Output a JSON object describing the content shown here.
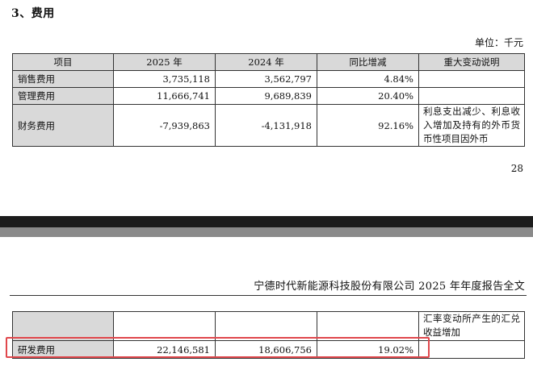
{
  "section_title": "3、费用",
  "unit_label": "单位：千元",
  "table1": {
    "headers": [
      "项目",
      "2025 年",
      "2024 年",
      "同比增减",
      "重大变动说明"
    ],
    "rows": [
      {
        "item": "销售费用",
        "y2025": "3,735,118",
        "y2024": "3,562,797",
        "change": "4.84%",
        "note": ""
      },
      {
        "item": "管理费用",
        "y2025": "11,666,741",
        "y2024": "9,689,839",
        "change": "20.40%",
        "note": ""
      },
      {
        "item": "财务费用",
        "y2025": "-7,939,863",
        "y2024": "-4,131,918",
        "change": "92.16%",
        "note": "利息支出减少、利息收入增加及持有的外币货币性项目因外币"
      }
    ]
  },
  "page_number": "28",
  "report_header": "宁德时代新能源科技股份有限公司 2025 年年度报告全文",
  "table2": {
    "continued_note": "汇率变动所产生的汇兑收益增加",
    "rows": [
      {
        "item": "研发费用",
        "y2025": "22,146,581",
        "y2024": "18,606,756",
        "change": "19.02%",
        "note": ""
      }
    ]
  },
  "colors": {
    "highlight": "#e0474c",
    "header_fill": "#d9d9d9"
  }
}
